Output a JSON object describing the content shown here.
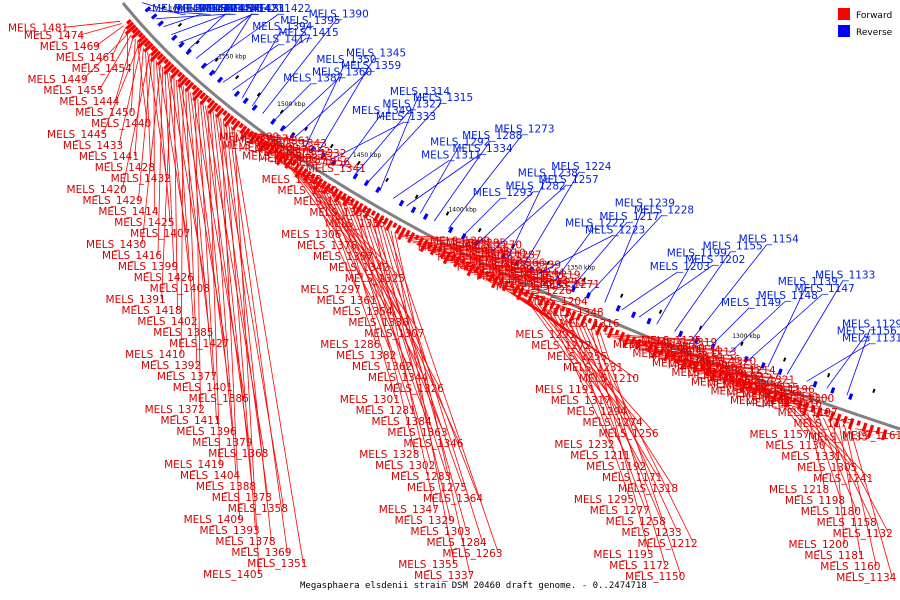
{
  "caption": "Megasphaera elsdenii strain DSM 20460 draft genome. - 0..2474718",
  "legend": [
    {
      "label": "Forward",
      "color": "#ff0000"
    },
    {
      "label": "Reverse",
      "color": "#0000ff"
    }
  ],
  "colors": {
    "forward": "#ff0000",
    "reverse": "#0000ff",
    "backbone": "#808080"
  },
  "ticks": [
    "1600 kbp",
    "1550 kbp",
    "1500 kbp",
    "1450 kbp",
    "1400 kbp",
    "1350 kbp",
    "1300 kbp"
  ],
  "forward_labels": [
    "MELS_1481",
    "MELS_1474",
    "MELS_1469",
    "MELS_1461",
    "MELS_1454",
    "MELS_1449",
    "MELS_1455",
    "MELS_1444",
    "MELS_1450",
    "MELS_1440",
    "MELS_1445",
    "MELS_1433",
    "MELS_1441",
    "MELS_1428",
    "MELS_1432",
    "MELS_1420",
    "MELS_1429",
    "MELS_1414",
    "MELS_1425",
    "MELS_1407",
    "MELS_1430",
    "MELS_1416",
    "MELS_1399",
    "MELS_1426",
    "MELS_1408",
    "MELS_1391",
    "MELS_1418",
    "MELS_1402",
    "MELS_1385",
    "MELS_1427",
    "MELS_1410",
    "MELS_1392",
    "MELS_1377",
    "MELS_1401",
    "MELS_1386",
    "MELS_1372",
    "MELS_1411",
    "MELS_1396",
    "MELS_1379",
    "MELS_1368",
    "MELS_1419",
    "MELS_1404",
    "MELS_1388",
    "MELS_1373",
    "MELS_1358",
    "MELS_1409",
    "MELS_1393",
    "MELS_1378",
    "MELS_1369",
    "MELS_1351",
    "MELS_1405",
    "MELS_1389",
    "MELS_1374",
    "MELS_1361",
    "MELS_1343",
    "MELS_1397",
    "MELS_1380",
    "MELS_1370",
    "MELS_1352",
    "MELS_1332",
    "MELS_1398",
    "MELS_1383",
    "MELS_1371",
    "MELS_1356",
    "MELS_1341",
    "MELS_1323",
    "MELS_1400",
    "MELS_1375",
    "MELS_1353",
    "MELS_1335",
    "MELS_1306",
    "MELS_1376",
    "MELS_1357",
    "MELS_1342",
    "MELS_1325",
    "MELS_1297",
    "MELS_1361",
    "MELS_1354",
    "MELS_1336",
    "MELS_1307",
    "MELS_1286",
    "MELS_1382",
    "MELS_1362",
    "MELS_1344",
    "MELS_1326",
    "MELS_1301",
    "MELS_1281",
    "MELS_1384",
    "MELS_1363",
    "MELS_1346",
    "MELS_1328",
    "MELS_1302",
    "MELS_1283",
    "MELS_1275",
    "MELS_1364",
    "MELS_1347",
    "MELS_1329",
    "MELS_1303",
    "MELS_1284",
    "MELS_1263",
    "MELS_1355",
    "MELS_1337",
    "MELS_1309",
    "MELS_1285",
    "MELS_1270",
    "MELS_1253",
    "MELS_1365",
    "MELS_1338",
    "MELS_1310",
    "MELS_1287",
    "MELS_1276",
    "MELS_1259",
    "MELS_1237",
    "MELS_1366",
    "MELS_1339",
    "MELS_1312",
    "MELS_1289",
    "MELS_1264",
    "MELS_1244",
    "MELS_1219",
    "MELS_1367",
    "MELS_1340",
    "MELS_1313",
    "MELS_1290",
    "MELS_1271",
    "MELS_1254",
    "MELS_1226",
    "MELS_1204",
    "MELS_1348",
    "MELS_1316",
    "MELS_1291",
    "MELS_1272",
    "MELS_1255",
    "MELS_1231",
    "MELS_1210",
    "MELS_1191",
    "MELS_1317",
    "MELS_1294",
    "MELS_1274",
    "MELS_1256",
    "MELS_1232",
    "MELS_1211",
    "MELS_1192",
    "MELS_1171",
    "MELS_1318",
    "MELS_1295",
    "MELS_1277",
    "MELS_1258",
    "MELS_1233",
    "MELS_1212",
    "MELS_1193",
    "MELS_1172",
    "MELS_1150",
    "MELS_1125",
    "MELS_1319",
    "MELS_1296",
    "MELS_1278",
    "MELS_1260",
    "MELS_1234",
    "MELS_1213",
    "MELS_1194",
    "MELS_1173",
    "MELS_1151",
    "MELS_1126",
    "MELS_1320",
    "MELS_1298",
    "MELS_1279",
    "MELS_1261",
    "MELS_1235",
    "MELS_1214",
    "MELS_1195",
    "MELS_1174",
    "MELS_1152",
    "MELS_1127",
    "MELS_1321",
    "MELS_1299",
    "MELS_1262",
    "MELS_1236",
    "MELS_1215",
    "MELS_1196",
    "MELS_1175",
    "MELS_1153",
    "MELS_1128",
    "MELS_1330",
    "MELS_1300",
    "MELS_1265",
    "MELS_1240",
    "MELS_1216",
    "MELS_1197",
    "MELS_1177",
    "MELS_1157",
    "MELS_1130",
    "MELS_1331",
    "MELS_1305",
    "MELS_1241",
    "MELS_1218",
    "MELS_1198",
    "MELS_1180",
    "MELS_1158",
    "MELS_1132",
    "MELS_1200",
    "MELS_1181",
    "MELS_1160",
    "MELS_1134",
    "MELS_1161",
    "MELS_1135"
  ],
  "reverse_labels": [
    "MELS_1478",
    "MELS_1442",
    "MELS_1436",
    "MELS_1435",
    "MELS_1434",
    "MELS_1431",
    "MELS_1424",
    "MELS_1423",
    "MELS_1422",
    "MELS_1421",
    "MELS_1417",
    "MELS_1415",
    "MELS_1394",
    "MELS_1395",
    "MELS_1390",
    "MELS_1387",
    "MELS_1360",
    "MELS_1359",
    "MELS_1350",
    "MELS_1345",
    "MELS_1333",
    "MELS_1349",
    "MELS_1327",
    "MELS_1315",
    "MELS_1314",
    "MELS_1311",
    "MELS_1334",
    "MELS_1292",
    "MELS_1288",
    "MELS_1273",
    "MELS_1293",
    "MELS_1282",
    "MELS_1257",
    "MELS_1238",
    "MELS_1224",
    "MELS_1223",
    "MELS_1222",
    "MELS_1217",
    "MELS_1228",
    "MELS_1239",
    "MELS_1203",
    "MELS_1202",
    "MELS_1199",
    "MELS_1155",
    "MELS_1154",
    "MELS_1149",
    "MELS_1148",
    "MELS_1147",
    "MELS_1139",
    "MELS_1133",
    "MELS_1131",
    "MELS_1156",
    "MELS_1129"
  ]
}
